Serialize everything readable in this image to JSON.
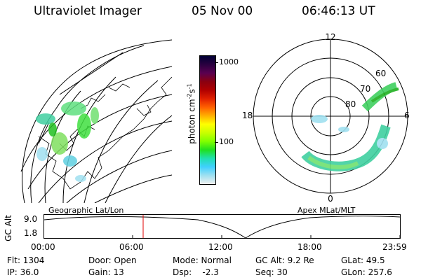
{
  "header": {
    "instrument": "Ultraviolet Imager",
    "date": "05 Nov 00",
    "time": "06:46:13 UT"
  },
  "colorbar": {
    "unit": "photon cm",
    "unit_exp1": "-2",
    "unit_s": "s",
    "unit_exp2": "-1",
    "tick_high": "1000",
    "tick_mid": "100",
    "colors": [
      "#000033",
      "#2a0040",
      "#5a0050",
      "#8a0010",
      "#b00000",
      "#e02000",
      "#ff6000",
      "#ffb000",
      "#ffff00",
      "#c8ff00",
      "#80ff00",
      "#20e020",
      "#20e0b0",
      "#40d0ff",
      "#a0e0f0",
      "#f0f0f0"
    ]
  },
  "polar_plot": {
    "labels": {
      "top": "12",
      "bottom": "0",
      "left": "18",
      "right": "6"
    },
    "lat_labels": [
      "60",
      "70",
      "80"
    ]
  },
  "map_labels": {
    "left": "Geographic Lat/Lon",
    "right": "Apex MLat/MLT"
  },
  "altitude_plot": {
    "ylabel": "GC Alt",
    "y_high": "9.0",
    "y_low": "1.8",
    "x_ticks": [
      "00:00",
      "06:00",
      "12:00",
      "18:00",
      "23:59"
    ]
  },
  "info": {
    "row1": {
      "flt": "Flt: 1304",
      "door": "Door: Open",
      "mode": "Mode: Normal",
      "gcalt": "GC Alt: 9.2 Re",
      "glat": "GLat:  49.5"
    },
    "row2": {
      "ip": "IP: 36.0",
      "gain": "Gain: 13",
      "dsp": "Dsp:    -2.3",
      "seq": "Seq: 30",
      "glon": "GLon: 257.6"
    }
  }
}
